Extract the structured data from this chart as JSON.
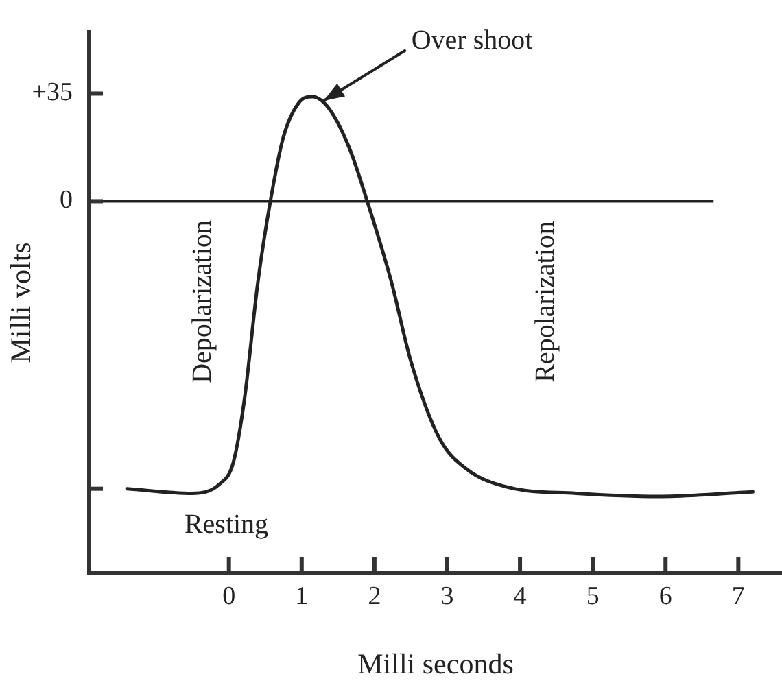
{
  "chart_data": {
    "type": "line",
    "xlabel": "Milli seconds",
    "ylabel": "Milli volts",
    "xlim": [
      -1.92,
      7.6
    ],
    "xticks": [
      0,
      1,
      2,
      3,
      4,
      5,
      6,
      7
    ],
    "ylim": [
      -121,
      55
    ],
    "yticks": [
      {
        "value": -93.5,
        "label": null
      },
      0,
      {
        "value": 35,
        "label": "+35"
      }
    ],
    "tick_labels": "xy",
    "series": [
      {
        "color": "#222222",
        "x": [
          -1.4,
          -0.51,
          -0.13,
          0.06,
          0.21,
          0.4,
          0.57,
          0.75,
          0.96,
          1.15,
          1.38,
          1.66,
          1.9,
          2.23,
          2.5,
          2.89,
          3.26,
          3.83,
          4.77,
          5.9,
          7.2
        ],
        "values": [
          -93.5,
          -95,
          -92,
          -85,
          -65,
          -26,
          0,
          21,
          32,
          34,
          30,
          17,
          0,
          -26,
          -52,
          -77,
          -87,
          -93,
          -95,
          -96,
          -94.5
        ]
      }
    ],
    "marker": "none",
    "line_style": "solid",
    "ref_lines": [
      {
        "axis": "y",
        "value": 0,
        "label": null,
        "color": "#222222"
      }
    ],
    "annotations": [
      {
        "text": "Over shoot",
        "x": 1.15,
        "y": 34
      },
      "Depolarization",
      "Repolarization",
      "Resting"
    ]
  }
}
